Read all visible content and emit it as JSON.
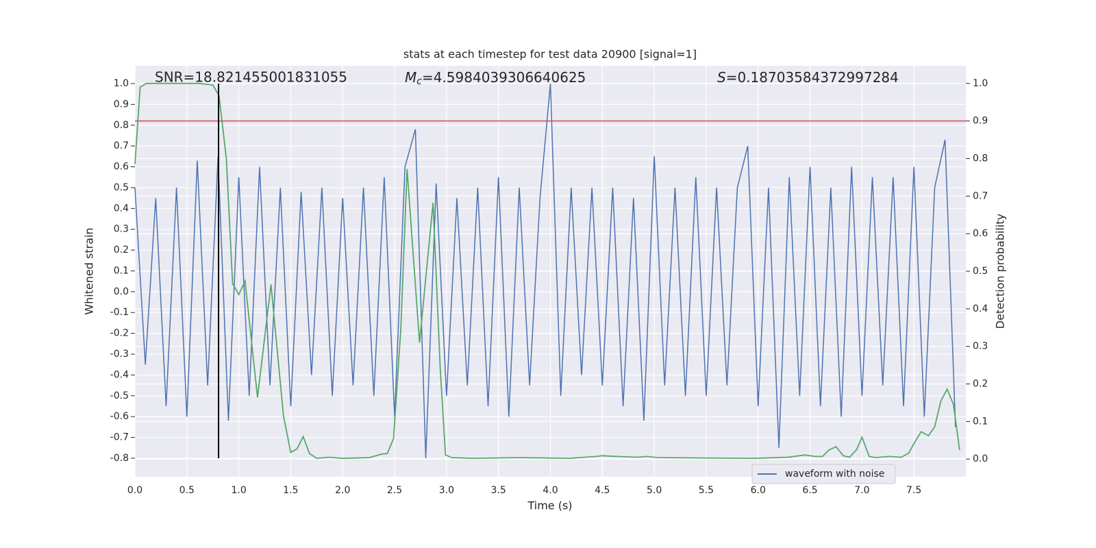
{
  "chart_data": {
    "type": "line",
    "title": "stats at each timestep for test data 20900 [signal=1]",
    "xlabel": "Time (s)",
    "ylabel": "Whitened strain",
    "y2label": "Detection probability",
    "xlim": [
      0,
      8.0
    ],
    "ylim": [
      -0.889,
      1.0855
    ],
    "y2lim": [
      -0.047,
      1.047
    ],
    "xticks": [
      {
        "value": 0,
        "label": "0.0"
      },
      0.5,
      {
        "value": 1,
        "label": "1.0"
      },
      1.5,
      {
        "value": 2,
        "label": "2.0"
      },
      2.5,
      {
        "value": 3,
        "label": "3.0"
      },
      3.5,
      {
        "value": 4,
        "label": "4.0"
      },
      4.5,
      {
        "value": 5,
        "label": "5.0"
      },
      5.5,
      {
        "value": 6,
        "label": "6.0"
      },
      6.5,
      {
        "value": 7,
        "label": "7.0"
      },
      7.5
    ],
    "yticks": [
      -0.8,
      -0.7,
      -0.6,
      -0.5,
      -0.4,
      -0.3,
      -0.2,
      -0.1,
      {
        "value": 0,
        "label": "0.0"
      },
      0.1,
      0.2,
      0.3,
      0.4,
      0.5,
      0.6,
      0.7,
      0.8,
      0.9,
      {
        "value": 1,
        "label": "1.0"
      }
    ],
    "y2ticks": [
      {
        "value": 0,
        "label": "0.0"
      },
      0.1,
      0.2,
      0.3,
      0.4,
      0.5,
      0.6,
      0.7,
      0.8,
      0.9,
      {
        "value": 1,
        "label": "1.0"
      }
    ],
    "grid": true,
    "legend": "lower right",
    "series": [
      {
        "name": "waveform with noise",
        "color": "#4c72b0",
        "x": [
          0.0,
          0.1,
          0.2,
          0.3,
          0.4,
          0.5,
          0.6,
          0.7,
          0.8,
          0.9,
          1.0,
          1.1,
          1.2,
          1.3,
          1.4,
          1.5,
          1.6,
          1.7,
          1.8,
          1.9,
          2.0,
          2.1,
          2.2,
          2.3,
          2.4,
          2.5,
          2.6,
          2.7,
          2.8,
          2.9,
          3.0,
          3.1,
          3.2,
          3.3,
          3.4,
          3.5,
          3.6,
          3.7,
          3.8,
          3.9,
          4.0,
          4.1,
          4.2,
          4.3,
          4.4,
          4.5,
          4.6,
          4.7,
          4.8,
          4.9,
          5.0,
          5.1,
          5.2,
          5.3,
          5.4,
          5.5,
          5.6,
          5.7,
          5.8,
          5.9,
          6.0,
          6.1,
          6.2,
          6.3,
          6.4,
          6.5,
          6.6,
          6.7,
          6.8,
          6.9,
          7.0,
          7.1,
          7.2,
          7.3,
          7.4,
          7.5,
          7.6,
          7.7,
          7.8,
          7.9
        ],
        "values": [
          0.5,
          -0.35,
          0.45,
          -0.55,
          0.5,
          -0.6,
          0.63,
          -0.45,
          0.65,
          -0.62,
          0.55,
          -0.5,
          0.6,
          -0.45,
          0.5,
          -0.55,
          0.48,
          -0.4,
          0.5,
          -0.5,
          0.45,
          -0.45,
          0.5,
          -0.5,
          0.55,
          -0.6,
          0.6,
          0.78,
          -0.8,
          0.52,
          -0.5,
          0.45,
          -0.45,
          0.5,
          -0.55,
          0.55,
          -0.6,
          0.5,
          -0.45,
          0.45,
          1.0,
          -0.5,
          0.5,
          -0.4,
          0.5,
          -0.45,
          0.5,
          -0.55,
          0.45,
          -0.62,
          0.65,
          -0.45,
          0.5,
          -0.5,
          0.55,
          -0.5,
          0.5,
          -0.45,
          0.5,
          0.7,
          -0.55,
          0.5,
          -0.75,
          0.55,
          -0.5,
          0.6,
          -0.55,
          0.5,
          -0.6,
          0.6,
          -0.5,
          0.55,
          -0.45,
          0.55,
          -0.55,
          0.6,
          -0.6,
          0.5,
          0.73,
          -0.65
        ]
      },
      {
        "color": "#55a868",
        "axis": "y2",
        "x": [
          0,
          0.05,
          0.11,
          0.61,
          0.75,
          0.81,
          0.88,
          0.94,
          1.0,
          1.06,
          1.18,
          1.31,
          1.43,
          1.5,
          1.56,
          1.62,
          1.68,
          1.75,
          1.87,
          2.0,
          2.26,
          2.37,
          2.43,
          2.49,
          2.56,
          2.62,
          2.74,
          2.87,
          2.94,
          2.99,
          3.05,
          3.25,
          3.71,
          4.18,
          4.44,
          4.5,
          4.64,
          4.84,
          4.93,
          5.03,
          5.96,
          6.29,
          6.45,
          6.55,
          6.62,
          6.68,
          6.75,
          6.82,
          6.88,
          6.95,
          7.0,
          7.07,
          7.13,
          7.26,
          7.38,
          7.45,
          7.51,
          7.57,
          7.64,
          7.7,
          7.76,
          7.82,
          7.88,
          7.94
        ],
        "values": [
          0.785,
          0.99,
          1.0,
          1.0,
          0.996,
          0.967,
          0.8,
          0.467,
          0.438,
          0.474,
          0.164,
          0.465,
          0.115,
          0.018,
          0.027,
          0.06,
          0.015,
          0.002,
          0.005,
          0.002,
          0.004,
          0.013,
          0.015,
          0.055,
          0.347,
          0.772,
          0.31,
          0.682,
          0.237,
          0.011,
          0.004,
          0.002,
          0.004,
          0.002,
          0.007,
          0.009,
          0.007,
          0.005,
          0.007,
          0.004,
          0.002,
          0.005,
          0.011,
          0.007,
          0.007,
          0.024,
          0.033,
          0.009,
          0.005,
          0.026,
          0.058,
          0.007,
          0.004,
          0.007,
          0.005,
          0.016,
          0.046,
          0.073,
          0.062,
          0.086,
          0.155,
          0.186,
          0.146,
          0.024
        ]
      }
    ],
    "threshold": {
      "value": 0.9,
      "axis": "y2",
      "color": "#c44e52"
    },
    "vline": {
      "x": 0.805,
      "ymin": -0.8,
      "ymax": 1.0,
      "color": "#000000"
    },
    "annotations": [
      {
        "text": "SNR=18.821455001831055"
      },
      {
        "symbol": "M",
        "sub": "c",
        "text": "=4.5984039306640625"
      },
      {
        "symbol": "S",
        "text": "=0.18703584372997284"
      }
    ]
  }
}
